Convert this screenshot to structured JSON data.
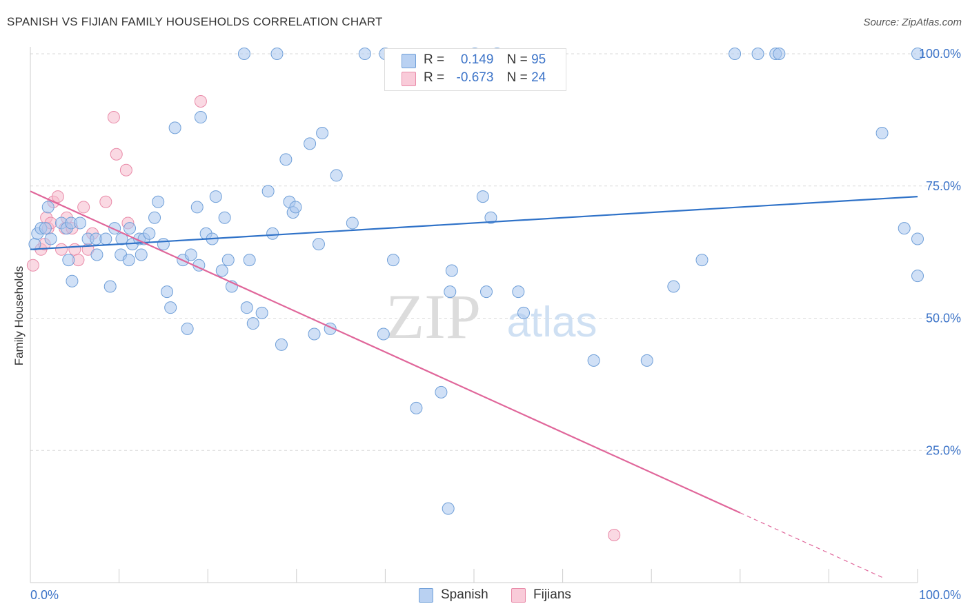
{
  "title": "SPANISH VS FIJIAN FAMILY HOUSEHOLDS CORRELATION CHART",
  "source": "Source: ZipAtlas.com",
  "watermark": {
    "zip": "ZIP",
    "atlas": "atlas"
  },
  "legend": {
    "r_label": "R =",
    "n_label": "N =",
    "spanish": {
      "r": "0.149",
      "n": "95"
    },
    "fijians": {
      "r": "-0.673",
      "n": "24"
    }
  },
  "colors": {
    "spanish_fill": "#a9c6ee",
    "spanish_stroke": "#6f9fd8",
    "spanish_line": "#2f72c8",
    "fijians_fill": "#f6b9cc",
    "fijians_stroke": "#e98aa8",
    "fijians_line": "#e0669a",
    "axis_text": "#3b73c8",
    "grid": "#d9d9d9"
  },
  "chart_data": {
    "type": "scatter",
    "title": "SPANISH VS FIJIAN FAMILY HOUSEHOLDS CORRELATION CHART",
    "xlabel": "",
    "ylabel": "Family Households",
    "xlim": [
      0,
      100
    ],
    "ylim": [
      0,
      100
    ],
    "x_tick_labels": [
      "0.0%",
      "100.0%"
    ],
    "y_ticks": [
      25,
      50,
      75,
      100
    ],
    "y_tick_labels": [
      "25.0%",
      "50.0%",
      "75.0%",
      "100.0%"
    ],
    "legend_position": "bottom-center",
    "series": [
      {
        "name": "Spanish",
        "r": 0.149,
        "n": 95,
        "trend": {
          "x": [
            0,
            100
          ],
          "y": [
            63.0,
            73.0
          ]
        },
        "points": [
          [
            0.5,
            64
          ],
          [
            0.8,
            66
          ],
          [
            1.2,
            67
          ],
          [
            1.7,
            67
          ],
          [
            2.3,
            65
          ],
          [
            3.5,
            68
          ],
          [
            4.1,
            67
          ],
          [
            4.6,
            68
          ],
          [
            5.6,
            68
          ],
          [
            6.5,
            65
          ],
          [
            7.4,
            65
          ],
          [
            4.3,
            61
          ],
          [
            4.7,
            57
          ],
          [
            7.5,
            62
          ],
          [
            8.5,
            65
          ],
          [
            9.5,
            67
          ],
          [
            10.2,
            62
          ],
          [
            10.3,
            65
          ],
          [
            11.1,
            61
          ],
          [
            11.2,
            67
          ],
          [
            11.5,
            64
          ],
          [
            12.3,
            65
          ],
          [
            12.5,
            62
          ],
          [
            12.8,
            65
          ],
          [
            13.4,
            66
          ],
          [
            14.0,
            69
          ],
          [
            14.4,
            72
          ],
          [
            15.0,
            64
          ],
          [
            15.4,
            55
          ],
          [
            15.8,
            52
          ],
          [
            16.3,
            86
          ],
          [
            17.2,
            61
          ],
          [
            17.7,
            48
          ],
          [
            18.1,
            62
          ],
          [
            18.8,
            71
          ],
          [
            19.0,
            60
          ],
          [
            19.2,
            88
          ],
          [
            19.8,
            66
          ],
          [
            20.5,
            65
          ],
          [
            20.9,
            73
          ],
          [
            21.6,
            59
          ],
          [
            21.9,
            69
          ],
          [
            22.3,
            61
          ],
          [
            22.7,
            56
          ],
          [
            24.1,
            100
          ],
          [
            24.4,
            52
          ],
          [
            24.7,
            61
          ],
          [
            25.1,
            49
          ],
          [
            26.1,
            51
          ],
          [
            26.8,
            74
          ],
          [
            27.3,
            66
          ],
          [
            27.8,
            100
          ],
          [
            28.3,
            45
          ],
          [
            28.8,
            80
          ],
          [
            29.2,
            72
          ],
          [
            29.6,
            70
          ],
          [
            29.9,
            71
          ],
          [
            31.5,
            83
          ],
          [
            32.0,
            47
          ],
          [
            32.5,
            64
          ],
          [
            32.9,
            85
          ],
          [
            33.8,
            48
          ],
          [
            34.5,
            77
          ],
          [
            36.3,
            68
          ],
          [
            37.7,
            100
          ],
          [
            39.8,
            47
          ],
          [
            40.9,
            61
          ],
          [
            43.5,
            33
          ],
          [
            46.3,
            36
          ],
          [
            47.1,
            14
          ],
          [
            47.3,
            55
          ],
          [
            47.5,
            59
          ],
          [
            50.1,
            100
          ],
          [
            51.0,
            73
          ],
          [
            51.4,
            55
          ],
          [
            51.9,
            69
          ],
          [
            52.6,
            100
          ],
          [
            55.0,
            55
          ],
          [
            55.6,
            51
          ],
          [
            63.5,
            42
          ],
          [
            69.5,
            42
          ],
          [
            72.5,
            56
          ],
          [
            75.7,
            61
          ],
          [
            79.4,
            100
          ],
          [
            82.0,
            100
          ],
          [
            84.0,
            100
          ],
          [
            84.4,
            100
          ],
          [
            96.0,
            85
          ],
          [
            98.5,
            67
          ],
          [
            100.0,
            58
          ],
          [
            100.0,
            100
          ],
          [
            100.0,
            65
          ],
          [
            2.0,
            71
          ],
          [
            40.0,
            100
          ],
          [
            9.0,
            56
          ]
        ]
      },
      {
        "name": "Fijians",
        "r": -0.673,
        "n": 24,
        "trend": {
          "x": [
            0,
            80
          ],
          "y": [
            74.0,
            13.2
          ]
        },
        "trend_dashed": {
          "x": [
            80,
            96
          ],
          "y": [
            13.2,
            1.0
          ]
        },
        "points": [
          [
            0.3,
            60
          ],
          [
            1.2,
            63
          ],
          [
            1.6,
            64
          ],
          [
            1.8,
            69
          ],
          [
            2.0,
            67
          ],
          [
            2.3,
            68
          ],
          [
            2.6,
            72
          ],
          [
            3.1,
            73
          ],
          [
            3.5,
            63
          ],
          [
            3.9,
            67
          ],
          [
            4.1,
            69
          ],
          [
            4.7,
            67
          ],
          [
            5.0,
            63
          ],
          [
            5.4,
            61
          ],
          [
            6.0,
            71
          ],
          [
            6.5,
            63
          ],
          [
            7.0,
            66
          ],
          [
            8.5,
            72
          ],
          [
            9.4,
            88
          ],
          [
            9.7,
            81
          ],
          [
            10.8,
            78
          ],
          [
            11.0,
            68
          ],
          [
            19.2,
            91
          ],
          [
            65.8,
            9
          ]
        ]
      }
    ]
  }
}
